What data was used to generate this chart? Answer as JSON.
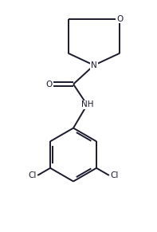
{
  "background_color": "#ffffff",
  "line_color": "#1a1a2e",
  "line_width": 1.4,
  "font_size_atoms": 7.5,
  "figsize": [
    1.97,
    2.91
  ],
  "dpi": 100,
  "xlim": [
    0,
    9
  ],
  "ylim": [
    0,
    13.3
  ]
}
